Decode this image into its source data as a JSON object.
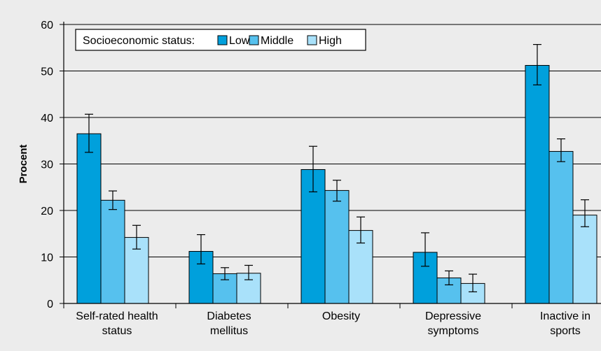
{
  "chart_data": {
    "type": "bar",
    "title": "",
    "xlabel": "",
    "ylabel": "Procent",
    "ylim": [
      0,
      60
    ],
    "yticks": [
      0,
      10,
      20,
      30,
      40,
      50,
      60
    ],
    "grid": true,
    "legend": {
      "title": "Socioeconomic status:",
      "placement": "top-left"
    },
    "categories": [
      [
        "Self-rated health",
        "status"
      ],
      [
        "Diabetes",
        "mellitus"
      ],
      [
        "Obesity"
      ],
      [
        "Depressive",
        "symptoms"
      ],
      [
        "Inactive in",
        "sports"
      ]
    ],
    "series": [
      {
        "name": "Low",
        "color": "#00a0dc",
        "values": [
          36.5,
          11.2,
          28.8,
          11.0,
          51.2
        ],
        "error_low": [
          32.5,
          8.5,
          24.0,
          8.0,
          47.0
        ],
        "error_high": [
          40.7,
          14.8,
          33.8,
          15.2,
          55.7
        ]
      },
      {
        "name": "Middle",
        "color": "#56c1ee",
        "values": [
          22.2,
          6.4,
          24.3,
          5.5,
          32.7
        ],
        "error_low": [
          20.2,
          5.1,
          22.0,
          4.0,
          30.5
        ],
        "error_high": [
          24.2,
          7.7,
          26.5,
          7.0,
          35.4
        ]
      },
      {
        "name": "High",
        "color": "#a9e1fa",
        "values": [
          14.2,
          6.5,
          15.7,
          4.3,
          19.0
        ],
        "error_low": [
          11.7,
          5.1,
          13.0,
          2.5,
          16.5
        ],
        "error_high": [
          16.8,
          8.2,
          18.6,
          6.3,
          22.3
        ]
      }
    ]
  }
}
